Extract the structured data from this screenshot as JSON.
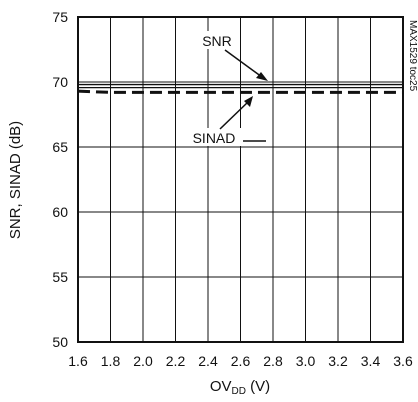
{
  "chart_data": {
    "type": "line",
    "title": "",
    "xlabel": "OV",
    "xlabel_subscript": "DD",
    "xlabel_unit": " (V)",
    "ylabel": "SNR, SINAD (dB)",
    "xlim": [
      1.6,
      3.6
    ],
    "ylim": [
      50,
      75
    ],
    "x_ticks": [
      "1.6",
      "1.8",
      "2.0",
      "2.2",
      "2.4",
      "2.6",
      "2.8",
      "3.0",
      "3.2",
      "3.4",
      "3.6"
    ],
    "y_ticks": [
      "50",
      "55",
      "60",
      "65",
      "70",
      "75"
    ],
    "grid": true,
    "x": [
      1.6,
      1.8,
      2.0,
      2.2,
      2.4,
      2.6,
      2.8,
      3.0,
      3.2,
      3.4,
      3.6
    ],
    "series": [
      {
        "name": "SNR",
        "style": "solid",
        "values": [
          69.8,
          69.8,
          69.8,
          69.8,
          69.8,
          69.8,
          69.8,
          69.8,
          69.8,
          69.8,
          69.8
        ]
      },
      {
        "name": "SINAD",
        "style": "dashed",
        "values": [
          69.3,
          69.2,
          69.2,
          69.2,
          69.2,
          69.2,
          69.2,
          69.2,
          69.2,
          69.2,
          69.2
        ]
      }
    ],
    "annotations": [
      {
        "text": "SNR",
        "target_series": "SNR"
      },
      {
        "text": "SINAD",
        "target_series": "SINAD"
      }
    ],
    "figure_code": "MAX1529 toc25",
    "colors": {
      "line": "#111111",
      "grid": "#111111"
    }
  }
}
